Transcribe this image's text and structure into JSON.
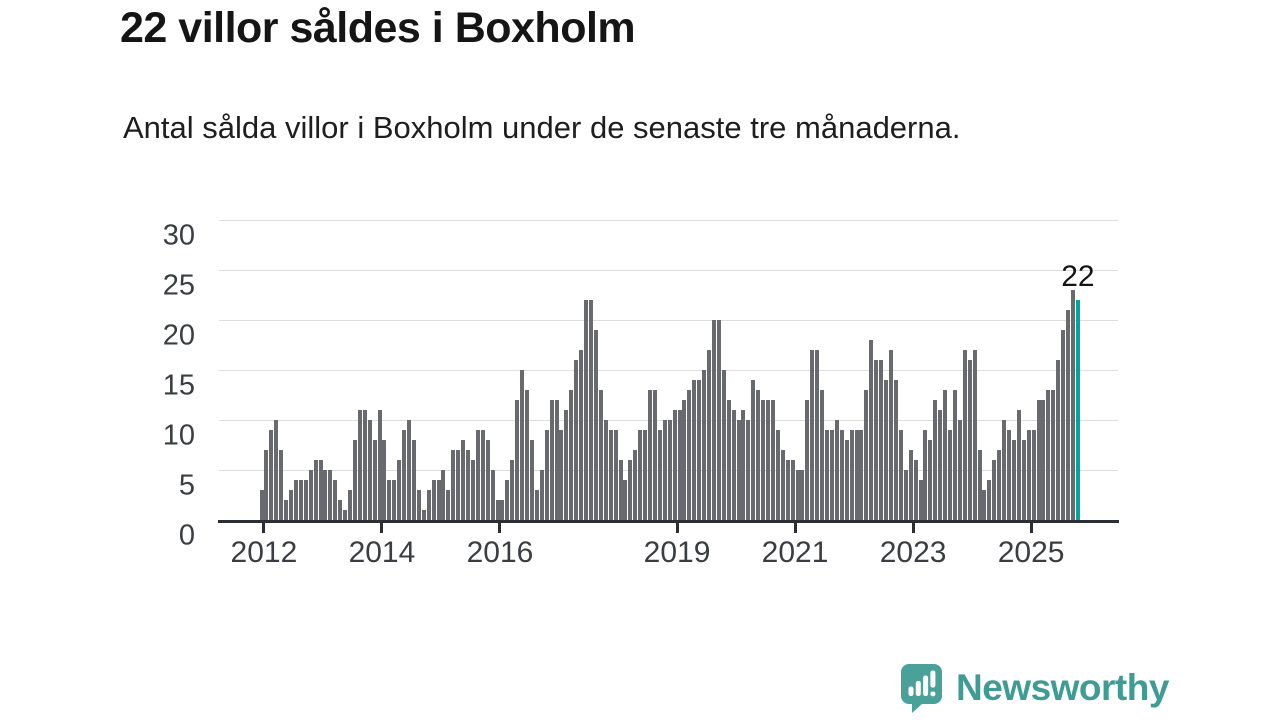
{
  "chart_data": {
    "type": "bar",
    "title": "22 villor såldes i Boxholm",
    "subtitle": "Antal sålda villor i Boxholm under de senaste tre månaderna.",
    "ylim": [
      0,
      30
    ],
    "y_ticks": [
      0,
      5,
      10,
      15,
      20,
      25,
      30
    ],
    "grid": true,
    "start_period": "2011-12",
    "frequency": "monthly",
    "x_ticks": [
      {
        "label": "2012",
        "month_index": 1
      },
      {
        "label": "2014",
        "month_index": 25
      },
      {
        "label": "2016",
        "month_index": 49
      },
      {
        "label": "2019",
        "month_index": 85
      },
      {
        "label": "2021",
        "month_index": 109
      },
      {
        "label": "2023",
        "month_index": 133
      },
      {
        "label": "2025",
        "month_index": 157
      }
    ],
    "values": [
      3,
      7,
      9,
      10,
      7,
      2,
      3,
      4,
      4,
      4,
      5,
      6,
      6,
      5,
      5,
      4,
      2,
      1,
      3,
      8,
      11,
      11,
      10,
      8,
      11,
      8,
      4,
      4,
      6,
      9,
      10,
      8,
      3,
      1,
      3,
      4,
      4,
      5,
      3,
      7,
      7,
      8,
      7,
      6,
      9,
      9,
      8,
      5,
      2,
      2,
      4,
      6,
      12,
      15,
      13,
      8,
      3,
      5,
      9,
      12,
      12,
      9,
      11,
      13,
      16,
      17,
      22,
      22,
      19,
      13,
      10,
      9,
      9,
      6,
      4,
      6,
      7,
      9,
      9,
      13,
      13,
      9,
      10,
      10,
      11,
      11,
      12,
      13,
      14,
      14,
      15,
      17,
      20,
      20,
      15,
      12,
      11,
      10,
      11,
      10,
      14,
      13,
      12,
      12,
      12,
      9,
      7,
      6,
      6,
      5,
      5,
      12,
      17,
      17,
      13,
      9,
      9,
      10,
      9,
      8,
      9,
      9,
      9,
      13,
      18,
      16,
      16,
      14,
      17,
      14,
      9,
      5,
      7,
      6,
      4,
      9,
      8,
      12,
      11,
      13,
      9,
      13,
      10,
      17,
      16,
      17,
      7,
      3,
      4,
      6,
      7,
      10,
      9,
      8,
      11,
      8,
      9,
      9,
      12,
      12,
      13,
      13,
      16,
      19,
      21,
      23,
      22
    ],
    "highlight_index": 166,
    "highlight_value_label": "22",
    "colors": {
      "bar": "#696970",
      "highlight": "#00a5a2",
      "grid": "#dedede",
      "axis": "#2b2e33",
      "axis_text": "#3a3e42",
      "annotation_text": "#141414"
    }
  },
  "branding": {
    "logo_text": "Newsworthy",
    "logo_color": "#3f9c95",
    "icon": "newsworthy-speech-bubble-bar-chart-icon"
  }
}
